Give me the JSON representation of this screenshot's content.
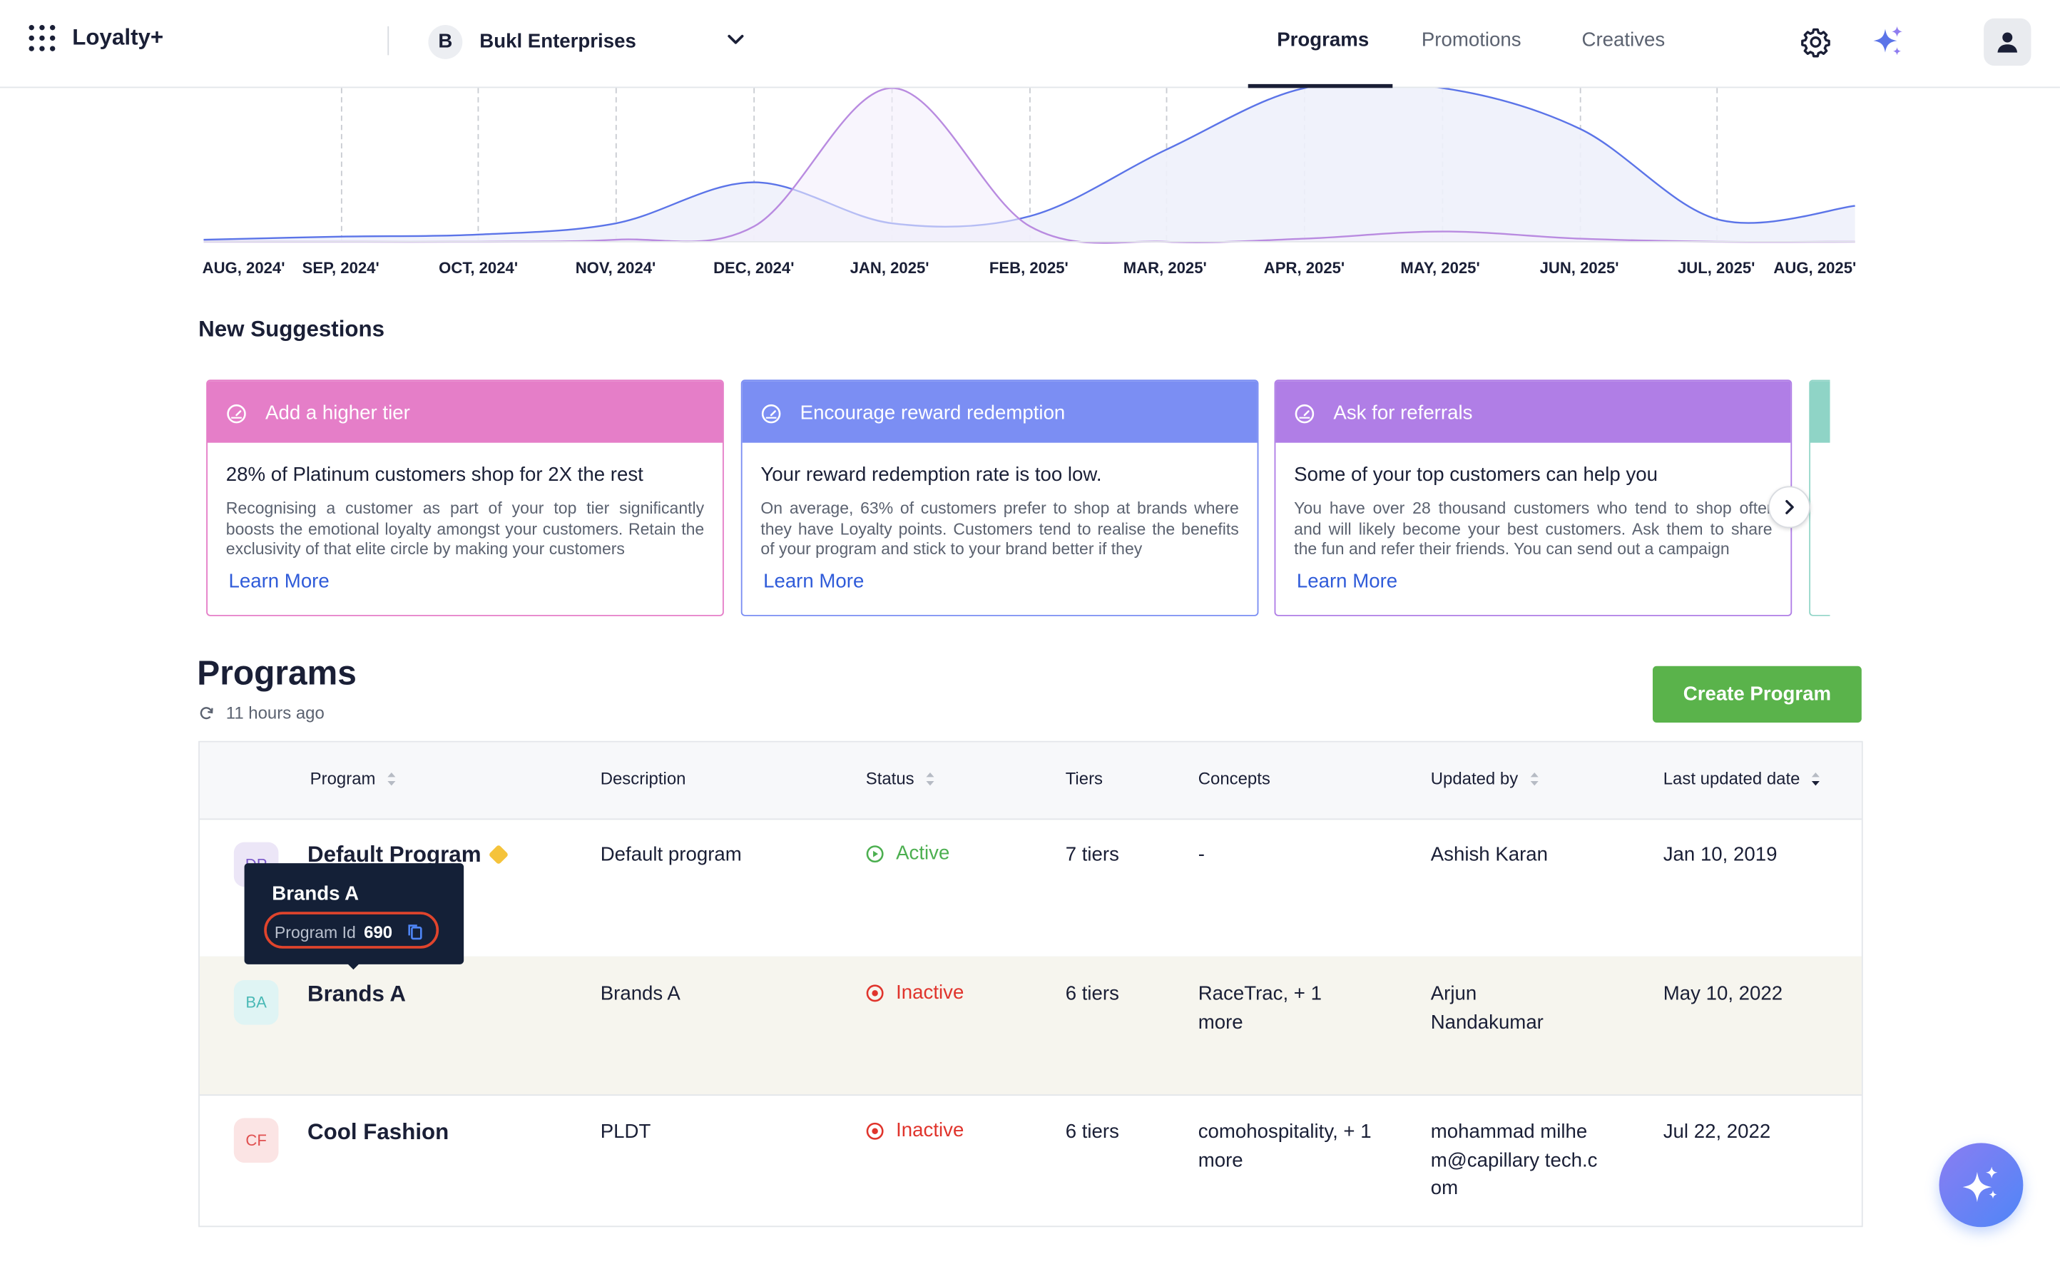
{
  "app": {
    "name": "Loyalty+"
  },
  "org": {
    "initial": "B",
    "name": "Bukl Enterprises"
  },
  "nav": {
    "tabs": [
      "Programs",
      "Promotions",
      "Creatives"
    ],
    "active": "Programs"
  },
  "chart_data": {
    "type": "area",
    "x_labels": [
      "AUG, 2024'",
      "SEP, 2024'",
      "OCT, 2024'",
      "NOV, 2024'",
      "DEC, 2024'",
      "JAN, 2025'",
      "FEB, 2025'",
      "MAR, 2025'",
      "APR, 2025'",
      "MAY, 2025'",
      "JUN, 2025'",
      "JUL, 2025'",
      "AUG, 2025'"
    ],
    "series": [
      {
        "color": "#5b74e8",
        "values": [
          2,
          5,
          7,
          18,
          58,
          18,
          25,
          90,
          150,
          150,
          110,
          22,
          35
        ]
      },
      {
        "color": "#b98be0",
        "values": [
          0,
          0,
          0,
          2,
          15,
          150,
          15,
          0,
          3,
          10,
          3,
          0,
          0
        ]
      }
    ],
    "grid": "vertical-dashed",
    "colors": {
      "fill": "#eef1fb"
    }
  },
  "suggestions": {
    "title": "New Suggestions",
    "cards": [
      {
        "title": "Add a higher tier",
        "color": "#e57ec8",
        "heading": "28% of Platinum customers shop for 2X the rest",
        "body": "Recognising a customer as part of your top tier significantly boosts the emotional loyalty amongst your customers. Retain the exclusivity of that elite circle by making your customers",
        "link": "Learn More"
      },
      {
        "title": "Encourage reward redemption",
        "color": "#7b8ef3",
        "heading": "Your reward redemption rate is too low.",
        "body": "On average, 63% of customers prefer to shop at brands where they have Loyalty points. Customers tend to realise the benefits of your program and stick to your brand better if they",
        "link": "Learn More"
      },
      {
        "title": "Ask for referrals",
        "color": "#b07ee6",
        "heading": "Some of your top customers can help you",
        "body": "You have over 28 thousand customers who tend to shop ofter and will likely become your best customers. Ask them to share the fun and refer their friends. You can send out a campaign",
        "link": "Learn More"
      }
    ]
  },
  "programs": {
    "title": "Programs",
    "refreshed": "11 hours ago",
    "create_label": "Create Program",
    "columns": [
      "Program",
      "Description",
      "Status",
      "Tiers",
      "Concepts",
      "Updated by",
      "Last updated date"
    ],
    "rows": [
      {
        "initials": "DP",
        "name": "Default Program",
        "description": "Default program",
        "status": "Active",
        "tiers": "7 tiers",
        "concepts": "-",
        "updated_by": "Ashish Karan",
        "date": "Jan 10, 2019"
      },
      {
        "initials": "BA",
        "name": "Brands A",
        "description": "Brands A",
        "status": "Inactive",
        "tiers": "6 tiers",
        "concepts": "RaceTrac, + 1 more",
        "updated_by": "Arjun Nandakumar",
        "date": "May 10, 2022"
      },
      {
        "initials": "CF",
        "name": "Cool Fashion",
        "description": "PLDT",
        "status": "Inactive",
        "tiers": "6 tiers",
        "concepts": "comohospitality, + 1 more",
        "updated_by": "mohammad milhem@capillary tech.com",
        "date": "Jul 22, 2022"
      }
    ]
  },
  "tooltip": {
    "title": "Brands A",
    "label": "Program Id",
    "value": "690"
  },
  "colors": {
    "active": "#4caf50",
    "inactive": "#e0342c",
    "link": "#2f5bd9",
    "primary_button": "#5ab34b"
  }
}
